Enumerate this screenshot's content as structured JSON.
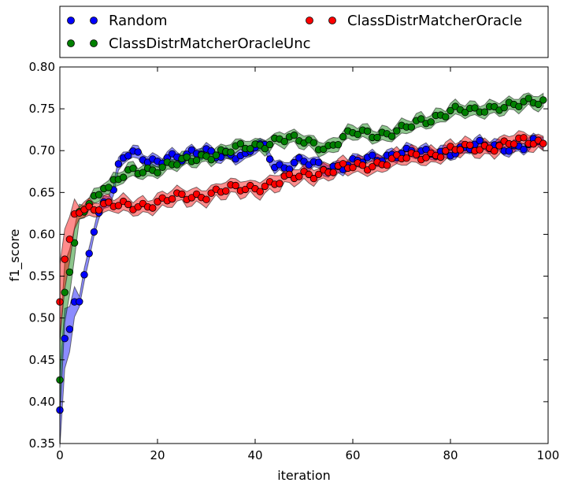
{
  "chart_data": {
    "type": "line",
    "xlabel": "iteration",
    "ylabel": "f1_score",
    "xlim": [
      0,
      100
    ],
    "ylim": [
      0.35,
      0.8
    ],
    "xticks": [
      0,
      20,
      40,
      60,
      80,
      100
    ],
    "yticks": [
      0.35,
      0.4,
      0.45,
      0.5,
      0.55,
      0.6,
      0.65,
      0.7,
      0.75,
      0.8
    ],
    "grid": false,
    "legend_position": "above-plot",
    "series": [
      {
        "name": "Random",
        "color": "#0000ff",
        "band_halfwidth": 0.006,
        "knots": [
          [
            0,
            0.39
          ],
          [
            1,
            0.47
          ],
          [
            2,
            0.485
          ],
          [
            3,
            0.52
          ],
          [
            4,
            0.515
          ],
          [
            5,
            0.547
          ],
          [
            6,
            0.58
          ],
          [
            7,
            0.607
          ],
          [
            8,
            0.625
          ],
          [
            9,
            0.64
          ],
          [
            10,
            0.645
          ],
          [
            11,
            0.655
          ],
          [
            12,
            0.68
          ],
          [
            13,
            0.69
          ],
          [
            14,
            0.695
          ],
          [
            15,
            0.695
          ],
          [
            17,
            0.69
          ],
          [
            20,
            0.688
          ],
          [
            22,
            0.695
          ],
          [
            25,
            0.69
          ],
          [
            30,
            0.7
          ],
          [
            35,
            0.695
          ],
          [
            38,
            0.69
          ],
          [
            40,
            0.705
          ],
          [
            42,
            0.705
          ],
          [
            44,
            0.685
          ],
          [
            46,
            0.68
          ],
          [
            48,
            0.685
          ],
          [
            50,
            0.685
          ],
          [
            55,
            0.68
          ],
          [
            60,
            0.685
          ],
          [
            65,
            0.69
          ],
          [
            70,
            0.7
          ],
          [
            75,
            0.695
          ],
          [
            80,
            0.7
          ],
          [
            85,
            0.705
          ],
          [
            90,
            0.705
          ],
          [
            95,
            0.705
          ],
          [
            99,
            0.71
          ]
        ]
      },
      {
        "name": "ClassDistrMatcherOracleUnc",
        "color": "#008000",
        "band_halfwidth": 0.007,
        "knots": [
          [
            0,
            0.42
          ],
          [
            1,
            0.53
          ],
          [
            2,
            0.555
          ],
          [
            3,
            0.585
          ],
          [
            4,
            0.625
          ],
          [
            5,
            0.632
          ],
          [
            6,
            0.64
          ],
          [
            7,
            0.645
          ],
          [
            8,
            0.65
          ],
          [
            9,
            0.66
          ],
          [
            10,
            0.655
          ],
          [
            12,
            0.665
          ],
          [
            15,
            0.675
          ],
          [
            20,
            0.68
          ],
          [
            25,
            0.685
          ],
          [
            30,
            0.695
          ],
          [
            35,
            0.7
          ],
          [
            40,
            0.705
          ],
          [
            45,
            0.715
          ],
          [
            50,
            0.71
          ],
          [
            55,
            0.705
          ],
          [
            58,
            0.715
          ],
          [
            60,
            0.72
          ],
          [
            65,
            0.72
          ],
          [
            70,
            0.725
          ],
          [
            75,
            0.735
          ],
          [
            80,
            0.75
          ],
          [
            85,
            0.745
          ],
          [
            90,
            0.755
          ],
          [
            95,
            0.755
          ],
          [
            99,
            0.758
          ]
        ]
      },
      {
        "name": "ClassDistrMatcherOracle",
        "color": "#ff0000",
        "band_halfwidth": 0.008,
        "knots": [
          [
            0,
            0.52
          ],
          [
            1,
            0.57
          ],
          [
            2,
            0.59
          ],
          [
            3,
            0.625
          ],
          [
            4,
            0.632
          ],
          [
            6,
            0.632
          ],
          [
            10,
            0.633
          ],
          [
            15,
            0.635
          ],
          [
            20,
            0.637
          ],
          [
            25,
            0.645
          ],
          [
            30,
            0.648
          ],
          [
            35,
            0.653
          ],
          [
            40,
            0.657
          ],
          [
            45,
            0.662
          ],
          [
            50,
            0.672
          ],
          [
            55,
            0.676
          ],
          [
            60,
            0.68
          ],
          [
            65,
            0.685
          ],
          [
            70,
            0.69
          ],
          [
            75,
            0.695
          ],
          [
            80,
            0.7
          ],
          [
            85,
            0.703
          ],
          [
            90,
            0.707
          ],
          [
            95,
            0.71
          ],
          [
            99,
            0.71
          ]
        ]
      }
    ]
  }
}
